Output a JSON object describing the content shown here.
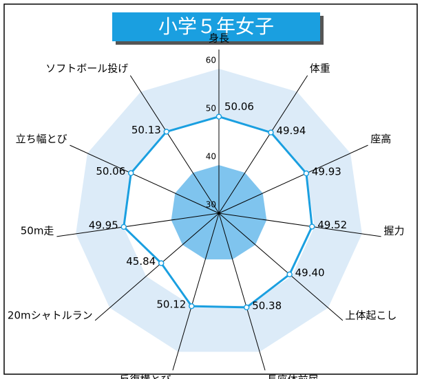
{
  "chart_data": {
    "type": "radar",
    "title": "小学５年女子",
    "categories": [
      "身長",
      "体重",
      "座高",
      "握力",
      "上体起こし",
      "長座体前屈",
      "反復横とび",
      "20mシャトルラン",
      "50m走",
      "立ち幅とび",
      "ソフトボール投げ"
    ],
    "values": [
      50.06,
      49.94,
      49.93,
      49.52,
      49.4,
      50.38,
      50.12,
      45.84,
      49.95,
      50.06,
      50.13
    ],
    "value_labels": [
      "50.06",
      "49.94",
      "49.93",
      "49.52",
      "49.40",
      "50.38",
      "50.12",
      "45.84",
      "49.95",
      "50.06",
      "50.13"
    ],
    "color": "#1a9fe0",
    "ylim": [
      30,
      60
    ],
    "yticks": [
      30,
      40,
      50,
      60
    ]
  }
}
